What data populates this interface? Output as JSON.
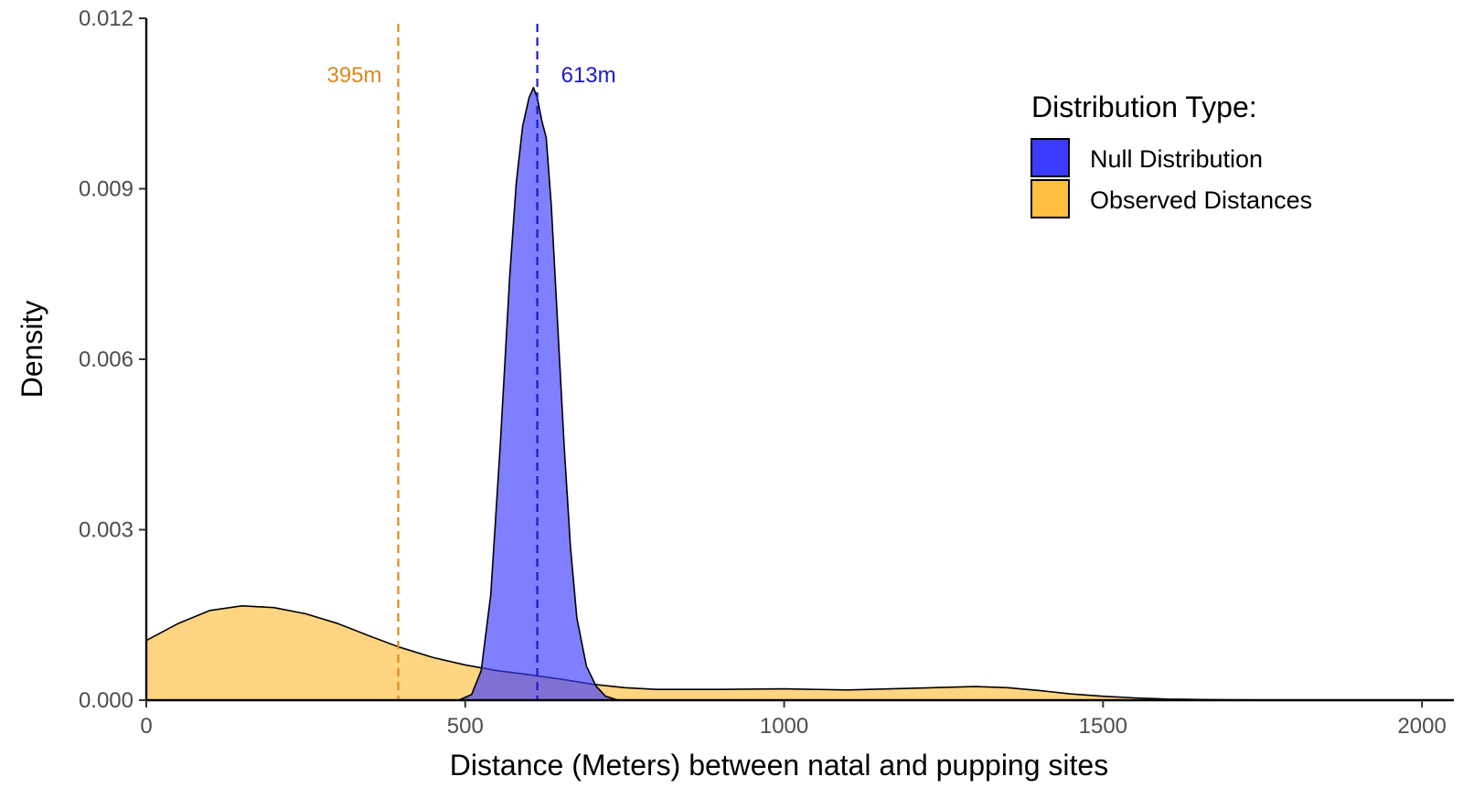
{
  "chart_data": {
    "type": "area",
    "title": "",
    "xlabel": "Distance (Meters) between natal and pupping sites",
    "ylabel": "Density",
    "xlim": [
      0,
      2050
    ],
    "ylim": [
      0,
      0.012
    ],
    "x_ticks": [
      0,
      500,
      1000,
      1500,
      2000
    ],
    "y_ticks": [
      0,
      0.003,
      0.006,
      0.009,
      0.012
    ],
    "x_tick_labels": [
      "0",
      "500",
      "1000",
      "1500",
      "2000"
    ],
    "y_tick_labels": [
      "0.000",
      "0.003",
      "0.006",
      "0.009",
      "0.012"
    ],
    "grid": false,
    "legend": {
      "title": "Distribution Type:",
      "placement": "top-right",
      "items": [
        {
          "label": "Null Distribution",
          "color": "#3b3bff"
        },
        {
          "label": "Observed Distances",
          "color": "#ffbf3f"
        }
      ]
    },
    "series": [
      {
        "name": "Observed Distances",
        "fill": "#ffbf3f",
        "fill_opacity": 0.65,
        "x": [
          0,
          50,
          100,
          150,
          200,
          250,
          300,
          350,
          395,
          450,
          500,
          550,
          600,
          650,
          700,
          750,
          800,
          900,
          1000,
          1100,
          1200,
          1300,
          1350,
          1400,
          1450,
          1500,
          1550,
          1600,
          1700,
          1800,
          2000
        ],
        "y": [
          0.00105,
          0.00135,
          0.00158,
          0.00166,
          0.00163,
          0.00152,
          0.00135,
          0.00113,
          0.00094,
          0.00075,
          0.00062,
          0.00052,
          0.00045,
          0.00037,
          0.00028,
          0.00022,
          0.00019,
          0.00019,
          0.0002,
          0.00018,
          0.00021,
          0.00024,
          0.00022,
          0.00017,
          0.00011,
          7e-05,
          4e-05,
          2e-05,
          5e-06,
          0.0,
          0.0
        ]
      },
      {
        "name": "Null Distribution",
        "fill": "#3b3bff",
        "fill_opacity": 0.65,
        "x": [
          490,
          510,
          525,
          540,
          555,
          570,
          580,
          590,
          600,
          607,
          613,
          620,
          627,
          635,
          645,
          655,
          665,
          675,
          690,
          705,
          720,
          740
        ],
        "y": [
          0.0,
          0.0001,
          0.00052,
          0.00185,
          0.0045,
          0.0075,
          0.0091,
          0.0101,
          0.0106,
          0.01078,
          0.0106,
          0.0102,
          0.0099,
          0.0087,
          0.0066,
          0.0045,
          0.0027,
          0.00145,
          0.0006,
          0.00025,
          7e-05,
          0.0
        ]
      }
    ],
    "reference_lines": [
      {
        "x": 395,
        "label": "395m",
        "color": "#d98a1c"
      },
      {
        "x": 613,
        "label": "613m",
        "color": "#1a1acc"
      }
    ]
  }
}
